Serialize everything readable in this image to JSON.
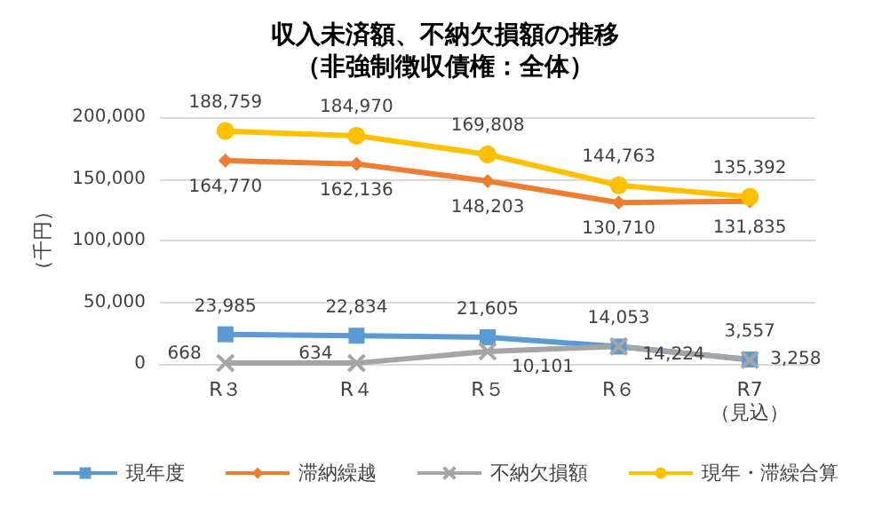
{
  "chart_data": {
    "type": "line",
    "title": "収入未済額、不納欠損額の推移",
    "subtitle": "（非強制徴収債権：全体）",
    "ylabel": "（千円）",
    "categories": [
      "R３",
      "R４",
      "R５",
      "R６",
      "R7\n（見込）"
    ],
    "series": [
      {
        "name": "現年度",
        "color": "#5b9bd5",
        "marker": "square",
        "values": [
          23985,
          22834,
          21605,
          14053,
          3557
        ],
        "value_labels": [
          "23,985",
          "22,834",
          "21,605",
          "14,053",
          "3,557"
        ]
      },
      {
        "name": "滞納繰越",
        "color": "#ed7d31",
        "marker": "diamond",
        "values": [
          164770,
          162136,
          148203,
          130710,
          131835
        ],
        "value_labels": [
          "164,770",
          "162,136",
          "148,203",
          "130,710",
          "131,835"
        ]
      },
      {
        "name": "不納欠損額",
        "color": "#a5a5a5",
        "marker": "cross",
        "values": [
          668,
          634,
          10101,
          14224,
          3258
        ],
        "value_labels": [
          "668",
          "634",
          "10,101",
          "14,224",
          "3,258"
        ]
      },
      {
        "name": "現年・滞繰合算",
        "color": "#ffc000",
        "marker": "circle",
        "values": [
          188759,
          184970,
          169808,
          144763,
          135392
        ],
        "value_labels": [
          "188,759",
          "184,970",
          "169,808",
          "144,763",
          "135,392"
        ]
      }
    ],
    "ylim": [
      0,
      200000
    ],
    "yticks": [
      {
        "value": 0,
        "label": "0"
      },
      {
        "value": 50000,
        "label": "50,000"
      },
      {
        "value": 100000,
        "label": "100,000"
      },
      {
        "value": 150000,
        "label": "150,000"
      },
      {
        "value": 200000,
        "label": "200,000"
      }
    ],
    "grid": "y",
    "legend": "bottom"
  }
}
